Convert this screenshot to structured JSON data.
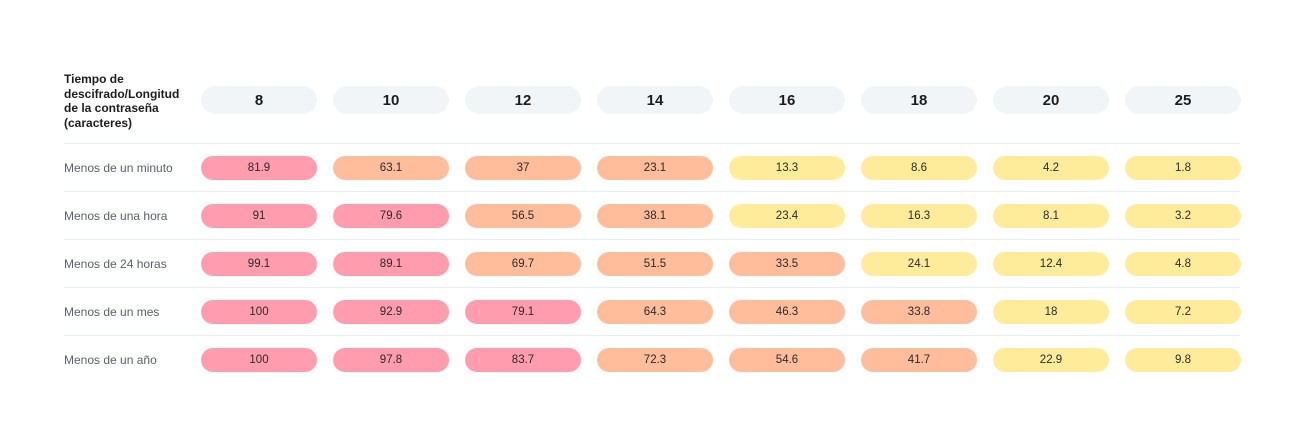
{
  "chart_data": {
    "type": "table",
    "corner_label": "Tiempo de descifrado/Longitud de la contraseña (caracteres)",
    "columns": [
      "8",
      "10",
      "12",
      "14",
      "16",
      "18",
      "20",
      "25"
    ],
    "rows": [
      {
        "label": "Menos de un minuto",
        "values": [
          "81.9",
          "63.1",
          "37",
          "23.1",
          "13.3",
          "8.6",
          "4.2",
          "1.8"
        ]
      },
      {
        "label": "Menos de una hora",
        "values": [
          "91",
          "79.6",
          "56.5",
          "38.1",
          "23.4",
          "16.3",
          "8.1",
          "3.2"
        ]
      },
      {
        "label": "Menos de 24 horas",
        "values": [
          "99.1",
          "89.1",
          "69.7",
          "51.5",
          "33.5",
          "24.1",
          "12.4",
          "4.8"
        ]
      },
      {
        "label": "Menos de un mes",
        "values": [
          "100",
          "92.9",
          "79.1",
          "64.3",
          "46.3",
          "33.8",
          "18",
          "7.2"
        ]
      },
      {
        "label": "Menos de un año",
        "values": [
          "100",
          "97.8",
          "83.7",
          "72.3",
          "54.6",
          "41.7",
          "22.9",
          "9.8"
        ]
      }
    ],
    "colors": {
      "header_pill": "#f2f5f8",
      "high": "#ff9dae",
      "medium": "#ffbd9c",
      "low": "#ffec9b"
    },
    "levels": [
      [
        "high",
        "medium",
        "medium",
        "medium",
        "low",
        "low",
        "low",
        "low"
      ],
      [
        "high",
        "high",
        "medium",
        "medium",
        "low",
        "low",
        "low",
        "low"
      ],
      [
        "high",
        "high",
        "medium",
        "medium",
        "medium",
        "low",
        "low",
        "low"
      ],
      [
        "high",
        "high",
        "high",
        "medium",
        "medium",
        "medium",
        "low",
        "low"
      ],
      [
        "high",
        "high",
        "high",
        "medium",
        "medium",
        "medium",
        "low",
        "low"
      ]
    ]
  }
}
